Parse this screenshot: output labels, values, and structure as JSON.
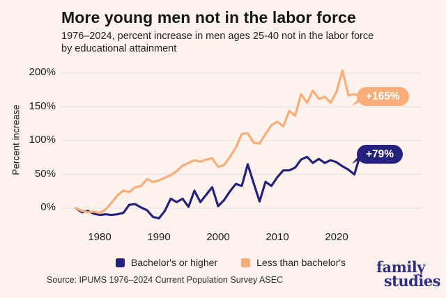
{
  "header": {
    "title": "More young men not in the labor force",
    "subtitle_lines": [
      "1976–2024, percent increase in men ages 25-40 not in the labor force",
      "by educational attainment"
    ]
  },
  "colors": {
    "background": "#fdf3ec",
    "navy": "#25227d",
    "orange": "#f9ad78",
    "gridline": "#e8e4e0",
    "logo_navy": "#2e3084"
  },
  "chart_data": {
    "type": "line",
    "title": "More young men not in the labor force",
    "subtitle": "1976–2024, percent increase in men ages 25-40 not in the labor force by educational attainment",
    "xlabel": "",
    "ylabel": "Percent increase",
    "xlim": [
      1976,
      2024
    ],
    "ylim": [
      -20,
      210
    ],
    "x_ticks": [
      1980,
      1990,
      2000,
      2010,
      2020
    ],
    "y_ticks": [
      0,
      50,
      100,
      150,
      200
    ],
    "y_tick_suffix": "%",
    "grid": "horizontal",
    "legend_position": "bottom",
    "years": [
      1976,
      1977,
      1978,
      1979,
      1980,
      1981,
      1982,
      1983,
      1984,
      1985,
      1986,
      1987,
      1988,
      1989,
      1990,
      1991,
      1992,
      1993,
      1994,
      1995,
      1996,
      1997,
      1998,
      1999,
      2000,
      2001,
      2002,
      2003,
      2004,
      2005,
      2006,
      2007,
      2008,
      2009,
      2010,
      2011,
      2012,
      2013,
      2014,
      2015,
      2016,
      2017,
      2018,
      2019,
      2020,
      2021,
      2022,
      2023,
      2024
    ],
    "series": [
      {
        "name": "Bachelor's or higher",
        "color": "#25227d",
        "end_label": "+79%",
        "values": [
          0,
          -6,
          -4,
          -8,
          -10,
          -9,
          -10,
          -9,
          -7,
          5,
          6,
          1,
          -3,
          -13,
          -15,
          -4,
          14,
          9,
          14,
          2,
          26,
          9,
          20,
          31,
          3,
          12,
          25,
          36,
          33,
          65,
          37,
          10,
          39,
          33,
          46,
          56,
          56,
          60,
          72,
          76,
          67,
          73,
          67,
          71,
          68,
          62,
          57,
          50,
          79
        ]
      },
      {
        "name": "Less than bachelor's",
        "color": "#f9ad78",
        "end_label": "+165%",
        "values": [
          0,
          -4,
          -6,
          -5,
          -7,
          -2,
          8,
          19,
          26,
          24,
          31,
          33,
          43,
          39,
          41,
          45,
          49,
          55,
          63,
          67,
          71,
          69,
          72,
          74,
          61,
          64,
          76,
          90,
          110,
          111,
          97,
          96,
          110,
          123,
          128,
          121,
          144,
          137,
          169,
          156,
          174,
          162,
          165,
          156,
          173,
          204,
          167,
          169,
          165
        ]
      }
    ]
  },
  "footer": {
    "source": "Source: IPUMS 1976–2024 Current Population Survey ASEC",
    "logo_line1": "family",
    "logo_line2": "studies"
  }
}
